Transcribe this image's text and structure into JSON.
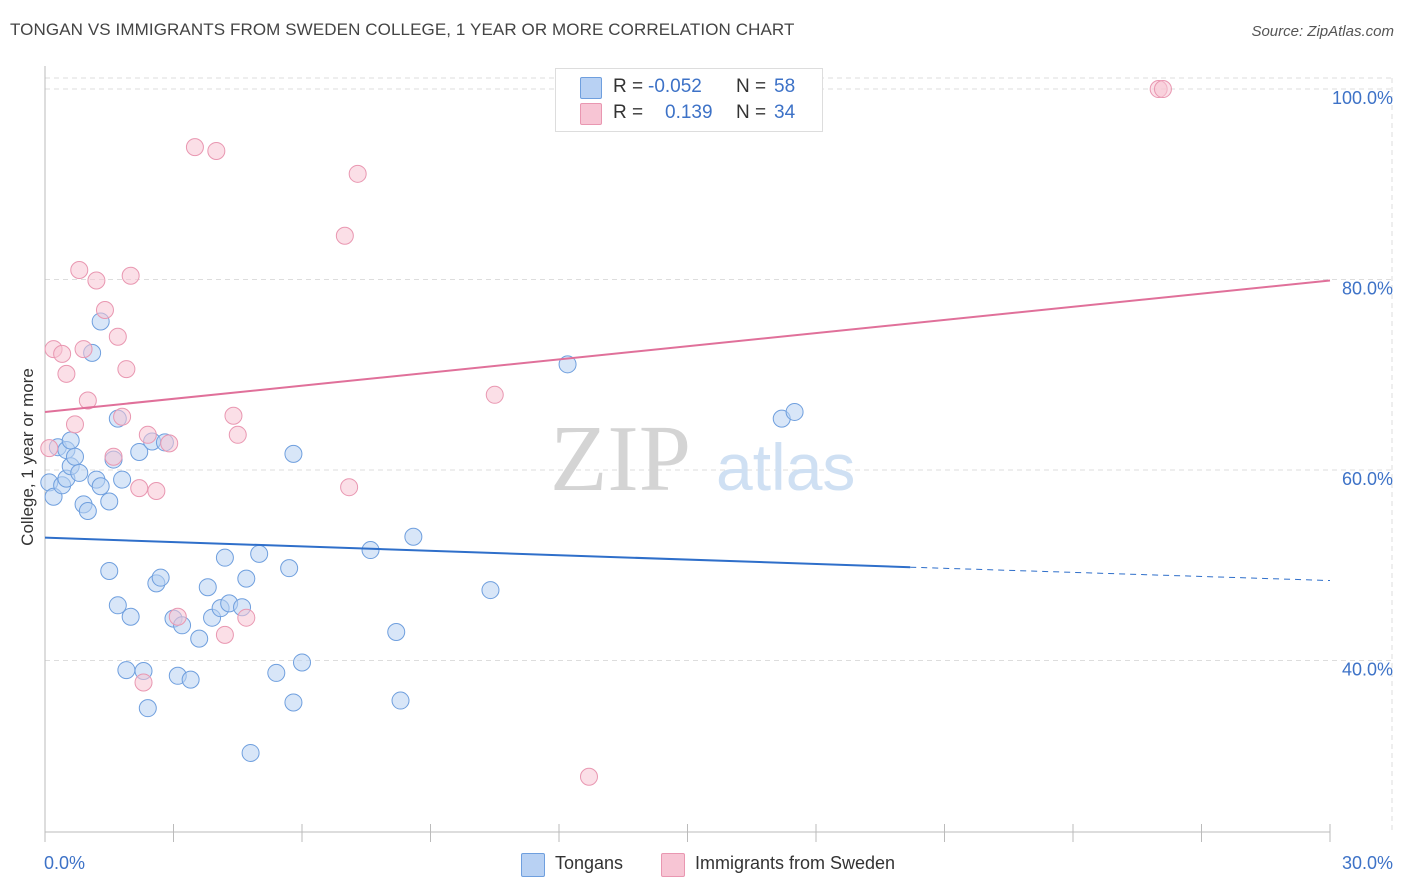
{
  "title": "TONGAN VS IMMIGRANTS FROM SWEDEN COLLEGE, 1 YEAR OR MORE CORRELATION CHART",
  "source": "Source: ZipAtlas.com",
  "watermark": {
    "zip": "ZIP",
    "atlas": "atlas"
  },
  "colors": {
    "blue_fill": "#b8d1f3",
    "blue_stroke": "#6f9fde",
    "blue_line": "#2f6fca",
    "blue_text": "#3d72c7",
    "pink_fill": "#f7c5d4",
    "pink_stroke": "#e997b1",
    "pink_line": "#e0709a",
    "grid": "#dddddd",
    "axis": "#bbbbbb"
  },
  "legend_top": [
    {
      "r_label": "R =",
      "r_value": "-0.052",
      "n_label": "N =",
      "n_value": "58"
    },
    {
      "r_label": "R =",
      "r_value": "0.139",
      "n_label": "N =",
      "n_value": "34"
    }
  ],
  "legend_bottom": [
    "Tongans",
    "Immigrants from Sweden"
  ],
  "chart_data": {
    "type": "scatter",
    "title": "TONGAN VS IMMIGRANTS FROM SWEDEN COLLEGE, 1 YEAR OR MORE CORRELATION CHART",
    "xlabel": "",
    "ylabel": "College, 1 year or more",
    "xlim": [
      0,
      30
    ],
    "ylim": [
      22,
      102
    ],
    "x_tick_labels": [
      "0.0%",
      "30.0%"
    ],
    "y_tick_values": [
      40,
      60,
      80,
      100
    ],
    "y_tick_labels": [
      "40.0%",
      "60.0%",
      "80.0%",
      "100.0%"
    ],
    "grid": true,
    "legend_position": "top-center",
    "series": [
      {
        "name": "Tongans",
        "r": -0.052,
        "n": 58,
        "trend": {
          "x0": 0,
          "y0": 52.9,
          "x1": 20.2,
          "y1": 49.8,
          "dash_x1": 30,
          "dash_y1": 48.4
        },
        "points": [
          [
            0.1,
            58.7
          ],
          [
            0.2,
            57.2
          ],
          [
            0.3,
            62.4
          ],
          [
            0.4,
            58.4
          ],
          [
            0.5,
            59.1
          ],
          [
            0.5,
            62.1
          ],
          [
            0.6,
            63.1
          ],
          [
            0.6,
            60.4
          ],
          [
            0.7,
            61.4
          ],
          [
            0.8,
            59.7
          ],
          [
            0.9,
            56.4
          ],
          [
            1.0,
            55.7
          ],
          [
            1.1,
            72.3
          ],
          [
            1.2,
            59.0
          ],
          [
            1.3,
            75.6
          ],
          [
            1.3,
            58.3
          ],
          [
            1.5,
            56.7
          ],
          [
            1.6,
            61.1
          ],
          [
            1.7,
            65.4
          ],
          [
            1.8,
            59.0
          ],
          [
            1.5,
            49.4
          ],
          [
            1.7,
            45.8
          ],
          [
            2.0,
            44.6
          ],
          [
            2.2,
            61.9
          ],
          [
            2.5,
            63.0
          ],
          [
            2.6,
            48.1
          ],
          [
            2.7,
            48.7
          ],
          [
            2.8,
            62.9
          ],
          [
            1.9,
            39.0
          ],
          [
            2.3,
            38.9
          ],
          [
            2.4,
            35.0
          ],
          [
            3.0,
            44.4
          ],
          [
            3.1,
            38.4
          ],
          [
            3.2,
            43.7
          ],
          [
            3.4,
            38.0
          ],
          [
            3.6,
            42.3
          ],
          [
            3.8,
            47.7
          ],
          [
            3.9,
            44.5
          ],
          [
            4.1,
            45.5
          ],
          [
            4.2,
            50.8
          ],
          [
            4.3,
            46.0
          ],
          [
            4.6,
            45.6
          ],
          [
            4.7,
            48.6
          ],
          [
            4.8,
            30.3
          ],
          [
            5.0,
            51.2
          ],
          [
            5.4,
            38.7
          ],
          [
            5.7,
            49.7
          ],
          [
            5.8,
            61.7
          ],
          [
            5.8,
            35.6
          ],
          [
            6.0,
            39.8
          ],
          [
            7.6,
            51.6
          ],
          [
            8.2,
            43.0
          ],
          [
            8.3,
            35.8
          ],
          [
            8.6,
            53.0
          ],
          [
            10.4,
            47.4
          ],
          [
            12.2,
            71.1
          ],
          [
            17.2,
            65.4
          ],
          [
            17.5,
            66.1
          ]
        ]
      },
      {
        "name": "Immigrants from Sweden",
        "r": 0.139,
        "n": 34,
        "trend": {
          "x0": 0,
          "y0": 66.1,
          "x1": 30,
          "y1": 79.9
        },
        "points": [
          [
            0.1,
            62.3
          ],
          [
            0.2,
            72.7
          ],
          [
            0.4,
            72.2
          ],
          [
            0.5,
            70.1
          ],
          [
            0.7,
            64.8
          ],
          [
            0.8,
            81.0
          ],
          [
            0.9,
            72.7
          ],
          [
            1.0,
            67.3
          ],
          [
            1.2,
            79.9
          ],
          [
            1.4,
            76.8
          ],
          [
            1.6,
            61.4
          ],
          [
            1.7,
            74.0
          ],
          [
            1.8,
            65.6
          ],
          [
            1.9,
            70.6
          ],
          [
            2.0,
            80.4
          ],
          [
            2.2,
            58.1
          ],
          [
            2.4,
            63.7
          ],
          [
            2.6,
            57.8
          ],
          [
            2.9,
            62.8
          ],
          [
            2.3,
            37.7
          ],
          [
            3.1,
            44.6
          ],
          [
            3.5,
            93.9
          ],
          [
            4.0,
            93.5
          ],
          [
            4.2,
            42.7
          ],
          [
            4.4,
            65.7
          ],
          [
            4.5,
            63.7
          ],
          [
            4.7,
            44.5
          ],
          [
            7.0,
            84.6
          ],
          [
            7.1,
            58.2
          ],
          [
            7.3,
            91.1
          ],
          [
            10.5,
            67.9
          ],
          [
            12.7,
            27.8
          ],
          [
            26.0,
            100.0
          ],
          [
            26.1,
            100.0
          ]
        ]
      }
    ]
  }
}
